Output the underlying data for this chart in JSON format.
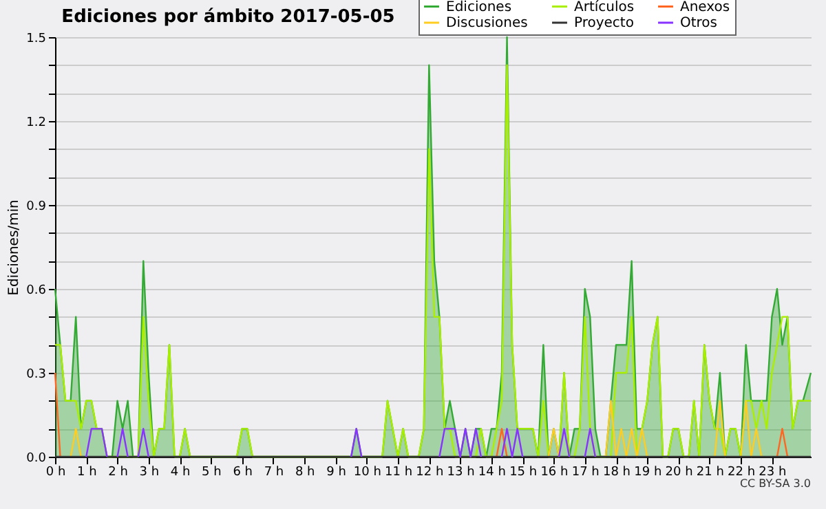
{
  "chart_data": {
    "type": "line",
    "title": "Ediciones por ámbito  2017-05-05",
    "ylabel": "Ediciones/min",
    "x": [
      0,
      0.167,
      0.333,
      0.5,
      0.667,
      0.833,
      1,
      1.167,
      1.333,
      1.5,
      1.667,
      1.833,
      2,
      2.167,
      2.333,
      2.5,
      2.667,
      2.833,
      3,
      3.167,
      3.333,
      3.5,
      3.667,
      3.833,
      4,
      4.167,
      4.333,
      4.5,
      4.667,
      4.833,
      5,
      5.167,
      5.333,
      5.5,
      5.667,
      5.833,
      6,
      6.167,
      6.333,
      6.5,
      6.667,
      6.833,
      7,
      7.167,
      7.333,
      7.5,
      7.667,
      7.833,
      8,
      8.167,
      8.333,
      8.5,
      8.667,
      8.833,
      9,
      9.167,
      9.333,
      9.5,
      9.667,
      9.833,
      10,
      10.167,
      10.333,
      10.5,
      10.667,
      10.833,
      11,
      11.167,
      11.333,
      11.5,
      11.667,
      11.833,
      12,
      12.167,
      12.333,
      12.5,
      12.667,
      12.833,
      13,
      13.167,
      13.333,
      13.5,
      13.667,
      13.833,
      14,
      14.167,
      14.333,
      14.5,
      14.667,
      14.833,
      15,
      15.167,
      15.333,
      15.5,
      15.667,
      15.833,
      16,
      16.167,
      16.333,
      16.5,
      16.667,
      16.833,
      17,
      17.167,
      17.333,
      17.5,
      17.667,
      17.833,
      18,
      18.167,
      18.333,
      18.5,
      18.667,
      18.833,
      19,
      19.167,
      19.333,
      19.5,
      19.667,
      19.833,
      20,
      20.167,
      20.333,
      20.5,
      20.667,
      20.833,
      21,
      21.167,
      21.333,
      21.5,
      21.667,
      21.833,
      22,
      22.167,
      22.333,
      22.5,
      22.667,
      22.833,
      23,
      23.167,
      23.333,
      23.5,
      23.667,
      23.833,
      24,
      24.25
    ],
    "series": [
      {
        "name": "Ediciones",
        "type": "area",
        "color": "#33aa33",
        "values": [
          0.6,
          0.4,
          0.2,
          0.2,
          0.5,
          0.1,
          0.2,
          0.2,
          0.1,
          0.1,
          0,
          0,
          0.2,
          0.1,
          0.2,
          0,
          0,
          0.7,
          0.3,
          0,
          0.1,
          0.1,
          0.4,
          0,
          0,
          0.1,
          0,
          0,
          0,
          0,
          0,
          0,
          0,
          0,
          0,
          0,
          0.1,
          0.1,
          0,
          0,
          0,
          0,
          0,
          0,
          0,
          0,
          0,
          0,
          0,
          0,
          0,
          0,
          0,
          0,
          0,
          0,
          0,
          0,
          0.1,
          0,
          0,
          0,
          0,
          0,
          0.2,
          0.1,
          0,
          0.1,
          0,
          0,
          0,
          0.1,
          1.4,
          0.7,
          0.5,
          0.1,
          0.2,
          0.1,
          0,
          0.1,
          0,
          0.1,
          0.1,
          0,
          0.1,
          0.1,
          0.3,
          1.5,
          0.4,
          0.1,
          0.1,
          0.1,
          0.1,
          0,
          0.4,
          0,
          0.1,
          0,
          0.3,
          0,
          0.1,
          0.1,
          0.6,
          0.5,
          0.1,
          0,
          0,
          0.2,
          0.4,
          0.4,
          0.4,
          0.7,
          0.1,
          0.1,
          0.2,
          0.4,
          0.5,
          0,
          0,
          0.1,
          0.1,
          0,
          0,
          0.2,
          0,
          0.4,
          0.2,
          0.1,
          0.3,
          0,
          0.1,
          0.1,
          0,
          0.4,
          0.2,
          0.2,
          0.2,
          0.2,
          0.5,
          0.6,
          0.4,
          0.5,
          0.1,
          0.2,
          0.2,
          0.3
        ]
      },
      {
        "name": "Artículos",
        "color": "#aaee00",
        "values": [
          0.4,
          0.4,
          0.2,
          0.2,
          0.2,
          0.1,
          0.2,
          0.2,
          0.1,
          0.1,
          0,
          0,
          0,
          0,
          0,
          0,
          0,
          0.5,
          0.2,
          0,
          0.1,
          0.1,
          0.4,
          0,
          0,
          0.1,
          0,
          0,
          0,
          0,
          0,
          0,
          0,
          0,
          0,
          0,
          0.1,
          0.1,
          0,
          0,
          0,
          0,
          0,
          0,
          0,
          0,
          0,
          0,
          0,
          0,
          0,
          0,
          0,
          0,
          0,
          0,
          0,
          0,
          0,
          0,
          0,
          0,
          0,
          0,
          0.2,
          0.1,
          0,
          0.1,
          0,
          0,
          0,
          0.1,
          1.1,
          0.5,
          0.5,
          0.1,
          0.1,
          0,
          0,
          0,
          0,
          0,
          0.1,
          0,
          0,
          0.1,
          0.2,
          1.4,
          0.4,
          0.1,
          0.1,
          0.1,
          0.1,
          0,
          0.2,
          0,
          0,
          0,
          0.3,
          0,
          0,
          0.1,
          0.5,
          0.1,
          0,
          0,
          0,
          0,
          0.3,
          0.3,
          0.3,
          0.5,
          0,
          0.1,
          0.2,
          0.4,
          0.5,
          0,
          0,
          0.1,
          0.1,
          0,
          0,
          0.2,
          0,
          0.4,
          0.2,
          0.1,
          0.1,
          0,
          0.1,
          0.1,
          0,
          0.2,
          0.2,
          0.1,
          0.2,
          0.1,
          0.3,
          0.4,
          0.5,
          0.5,
          0.1,
          0.2,
          0.2,
          0.2
        ]
      },
      {
        "name": "Anexos",
        "color": "#ff6622",
        "x": [
          0,
          0.167,
          7,
          14.167,
          14.333,
          14.5,
          20,
          23.167,
          23.333,
          23.5
        ],
        "values": [
          0.3,
          0,
          null,
          0,
          0.1,
          0,
          null,
          0,
          0.1,
          0
        ]
      },
      {
        "name": "Discusiones",
        "color": "#ffcc22",
        "x": [
          0.5,
          0.667,
          0.833,
          1,
          15.833,
          16,
          16.167,
          16.5,
          17.667,
          17.833,
          18,
          18.167,
          18.333,
          18.5,
          18.667,
          18.833,
          19,
          20.5,
          21.167,
          21.333,
          21.5,
          21.75,
          22,
          22.167,
          22.333,
          22.5,
          22.667
        ],
        "values": [
          0,
          0.1,
          0,
          null,
          0,
          0.1,
          0,
          null,
          0,
          0.2,
          0,
          0.1,
          0,
          0.1,
          0,
          0.1,
          0,
          null,
          0,
          0.2,
          0,
          null,
          0,
          0.2,
          0,
          0.1,
          0
        ]
      },
      {
        "name": "Proyecto",
        "color": "#333333",
        "x": [
          0,
          24.25
        ],
        "values": [
          0,
          0
        ]
      },
      {
        "name": "Otros",
        "color": "#8833ff",
        "x": [
          1,
          1.167,
          1.333,
          1.5,
          1.667,
          1.833,
          2,
          2.167,
          2.333,
          2.5,
          2.667,
          2.833,
          3,
          6,
          9.5,
          9.667,
          9.833,
          11,
          12.333,
          12.5,
          12.667,
          12.833,
          13,
          13.167,
          13.333,
          13.5,
          13.667,
          14,
          14.333,
          14.5,
          14.667,
          14.833,
          15,
          15.5,
          16.167,
          16.333,
          16.5,
          16.75,
          17,
          17.167,
          17.333
        ],
        "values": [
          0,
          0.1,
          0.1,
          0.1,
          0,
          null,
          0,
          0.1,
          0,
          null,
          0,
          0.1,
          0,
          null,
          0,
          0.1,
          0,
          null,
          0,
          0.1,
          0.1,
          0.1,
          0,
          0.1,
          0,
          0.1,
          0,
          null,
          0,
          0.1,
          0,
          0.1,
          0,
          null,
          0,
          0.1,
          0,
          null,
          0,
          0.1,
          0
        ]
      }
    ],
    "xlim": [
      0,
      24.25
    ],
    "xticks": [
      {
        "value": 0,
        "label": "0 h"
      },
      {
        "value": 1,
        "label": "1 h"
      },
      {
        "value": 2,
        "label": "2 h"
      },
      {
        "value": 3,
        "label": "3 h"
      },
      {
        "value": 4,
        "label": "4 h"
      },
      {
        "value": 5,
        "label": "5 h"
      },
      {
        "value": 6,
        "label": "6 h"
      },
      {
        "value": 7,
        "label": "7 h"
      },
      {
        "value": 8,
        "label": "8 h"
      },
      {
        "value": 9,
        "label": "9 h"
      },
      {
        "value": 10,
        "label": "10 h"
      },
      {
        "value": 11,
        "label": "11 h"
      },
      {
        "value": 12,
        "label": "12 h"
      },
      {
        "value": 13,
        "label": "13 h"
      },
      {
        "value": 14,
        "label": "14 h"
      },
      {
        "value": 15,
        "label": "15 h"
      },
      {
        "value": 16,
        "label": "16 h"
      },
      {
        "value": 17,
        "label": "17 h"
      },
      {
        "value": 18,
        "label": "18 h"
      },
      {
        "value": 19,
        "label": "19 h"
      },
      {
        "value": 20,
        "label": "20 h"
      },
      {
        "value": 21,
        "label": "21 h"
      },
      {
        "value": 22,
        "label": "22 h"
      },
      {
        "value": 23,
        "label": "23 h"
      }
    ],
    "ylim": [
      0,
      1.5
    ],
    "yticks": [
      {
        "value": 0,
        "label": "0.0"
      },
      {
        "value": 0.1,
        "label": null
      },
      {
        "value": 0.2,
        "label": null
      },
      {
        "value": 0.3,
        "label": "0.3"
      },
      {
        "value": 0.4,
        "label": null
      },
      {
        "value": 0.5,
        "label": null
      },
      {
        "value": 0.6,
        "label": "0.6"
      },
      {
        "value": 0.7,
        "label": null
      },
      {
        "value": 0.8,
        "label": null
      },
      {
        "value": 0.9,
        "label": "0.9"
      },
      {
        "value": 1.0,
        "label": null
      },
      {
        "value": 1.1,
        "label": null
      },
      {
        "value": 1.2,
        "label": "1.2"
      },
      {
        "value": 1.3,
        "label": null
      },
      {
        "value": 1.4,
        "label": null
      },
      {
        "value": 1.5,
        "label": "1.5"
      }
    ],
    "grid": "y",
    "legend": "top right",
    "annotations": [
      "CC BY-SA 3.0"
    ]
  }
}
